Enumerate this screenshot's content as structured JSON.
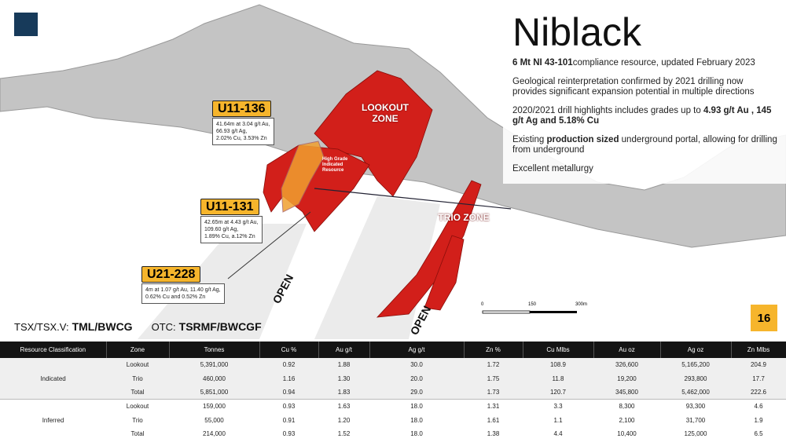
{
  "header": {
    "title": "Niblack",
    "bullets": [
      [
        {
          "text": "6 Mt NI 43-101",
          "bold": true
        },
        {
          "text": "compliance resource, updated February 2023",
          "bold": false
        }
      ],
      [
        {
          "text": "Geological reinterpretation confirmed by 2021 drilling now provides significant expansion potential in multiple directions",
          "bold": false
        }
      ],
      [
        {
          "text": "2020/2021 drill highlights includes grades up to ",
          "bold": false
        },
        {
          "text": "4.93 g/t Au , 145 g/t Ag and 5.18% Cu",
          "bold": true
        }
      ],
      [
        {
          "text": "Existing ",
          "bold": false
        },
        {
          "text": "production sized",
          "bold": true
        },
        {
          "text": " underground portal, allowing for drilling from underground",
          "bold": false
        }
      ],
      [
        {
          "text": "Excellent metallurgy",
          "bold": false
        }
      ]
    ]
  },
  "map": {
    "zones": [
      "LOOKOUT ZONE",
      "TRIO ZONE"
    ],
    "high_grade": "High Grade Indicated Resource",
    "open_labels": [
      "OPEN",
      "OPEN"
    ],
    "callouts": [
      {
        "id": "U11-136",
        "lines": [
          "41.64m at 3.04 g/t Au,",
          "66.93 g/t Ag,",
          "2.02% Cu, 3.53% Zn"
        ]
      },
      {
        "id": "U11-131",
        "lines": [
          "42.65m at 4.43 g/t Au,",
          "109.60 g/t Ag,",
          "1.89% Cu, a.12% Zn"
        ]
      },
      {
        "id": "U21-228",
        "lines": [
          "4m at 1.07 g/t Au, 11.40 g/t Ag,",
          "0.62% Cu and 0.52% Zn"
        ]
      }
    ],
    "scale": [
      "0",
      "150",
      "300m"
    ]
  },
  "tickers": [
    {
      "label": "TSX/TSX.V:",
      "code": "TML/BWCG"
    },
    {
      "label": "OTC:",
      "code": "TSRMF/BWCGF"
    }
  ],
  "page_number": "16",
  "table": {
    "header": [
      "Resource Classification",
      "Zone",
      "Tonnes",
      "Cu %",
      "Au g/t",
      "Ag g/t",
      "Zn %",
      "Cu Mlbs",
      "Au oz",
      "Ag oz",
      "Zn Mlbs"
    ],
    "groups": [
      {
        "classification": "Indicated",
        "rows": [
          [
            "Lookout",
            "5,391,000",
            "0.92",
            "1.88",
            "30.0",
            "1.72",
            "108.9",
            "326,600",
            "5,165,200",
            "204.9"
          ],
          [
            "Trio",
            "460,000",
            "1.16",
            "1.30",
            "20.0",
            "1.75",
            "11.8",
            "19,200",
            "293,800",
            "17.7"
          ],
          [
            "Total",
            "5,851,000",
            "0.94",
            "1.83",
            "29.0",
            "1.73",
            "120.7",
            "345,800",
            "5,462,000",
            "222.6"
          ]
        ]
      },
      {
        "classification": "Inferred",
        "rows": [
          [
            "Lookout",
            "159,000",
            "0.93",
            "1.63",
            "18.0",
            "1.31",
            "3.3",
            "8,300",
            "93,300",
            "4.6"
          ],
          [
            "Trio",
            "55,000",
            "0.91",
            "1.20",
            "18.0",
            "1.61",
            "1.1",
            "2,100",
            "31,700",
            "1.9"
          ],
          [
            "Total",
            "214,000",
            "0.93",
            "1.52",
            "18.0",
            "1.38",
            "4.4",
            "10,400",
            "125,000",
            "6.5"
          ]
        ]
      }
    ]
  }
}
